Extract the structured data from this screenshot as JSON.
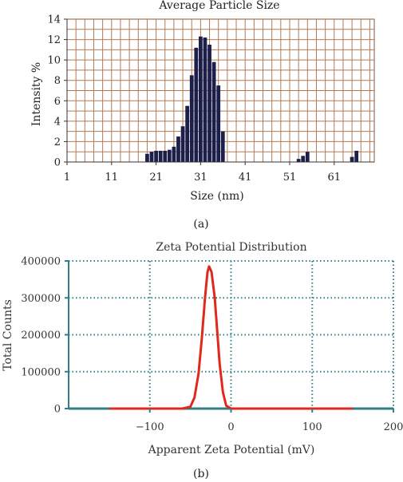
{
  "chart_data": [
    {
      "type": "bar",
      "title": "Average Particle Size",
      "xlabel": "Size (nm)",
      "ylabel": "Intensity %",
      "xlim": [
        1,
        70
      ],
      "ylim": [
        0,
        14
      ],
      "x_ticks": [
        1,
        11,
        21,
        31,
        41,
        51,
        61
      ],
      "y_ticks": [
        0,
        2,
        4,
        6,
        8,
        10,
        12,
        14
      ],
      "grid": true,
      "panel_label": "(a)",
      "bar_color": "#1c1f4a",
      "grid_color": "#b07a55",
      "x": [
        19,
        20,
        21,
        22,
        23,
        24,
        25,
        26,
        27,
        28,
        29,
        30,
        31,
        32,
        33,
        34,
        35,
        36,
        53,
        54,
        55,
        65,
        66
      ],
      "values": [
        0.8,
        1.0,
        1.1,
        1.1,
        1.1,
        1.2,
        1.5,
        2.5,
        3.5,
        5.5,
        8.5,
        11.2,
        12.3,
        12.2,
        11.5,
        9.8,
        7.5,
        3.0,
        0.3,
        0.6,
        1.0,
        0.5,
        1.1
      ]
    },
    {
      "type": "line",
      "title": "Zeta Potential Distribution",
      "xlabel": "Apparent Zeta Potential (mV)",
      "ylabel": "Total Counts",
      "xlim": [
        -200,
        200
      ],
      "ylim": [
        0,
        400000
      ],
      "x_ticks": [
        -100,
        0,
        100,
        200
      ],
      "y_ticks": [
        0,
        100000,
        200000,
        300000,
        400000
      ],
      "y_tick_labels": [
        "0",
        "100000",
        "200000",
        "300000",
        "400000"
      ],
      "grid": true,
      "panel_label": "(b)",
      "line_color": "#e0281c",
      "grid_color": "#2f7f86",
      "series": [
        {
          "x": [
            -150,
            -60,
            -50,
            -45,
            -40,
            -36,
            -32,
            -29,
            -27,
            -24,
            -20,
            -17,
            -14,
            -10,
            -6,
            0,
            150
          ],
          "values": [
            0,
            0,
            5000,
            30000,
            95000,
            190000,
            300000,
            370000,
            385000,
            370000,
            300000,
            210000,
            120000,
            45000,
            8000,
            0,
            0
          ]
        }
      ]
    }
  ]
}
